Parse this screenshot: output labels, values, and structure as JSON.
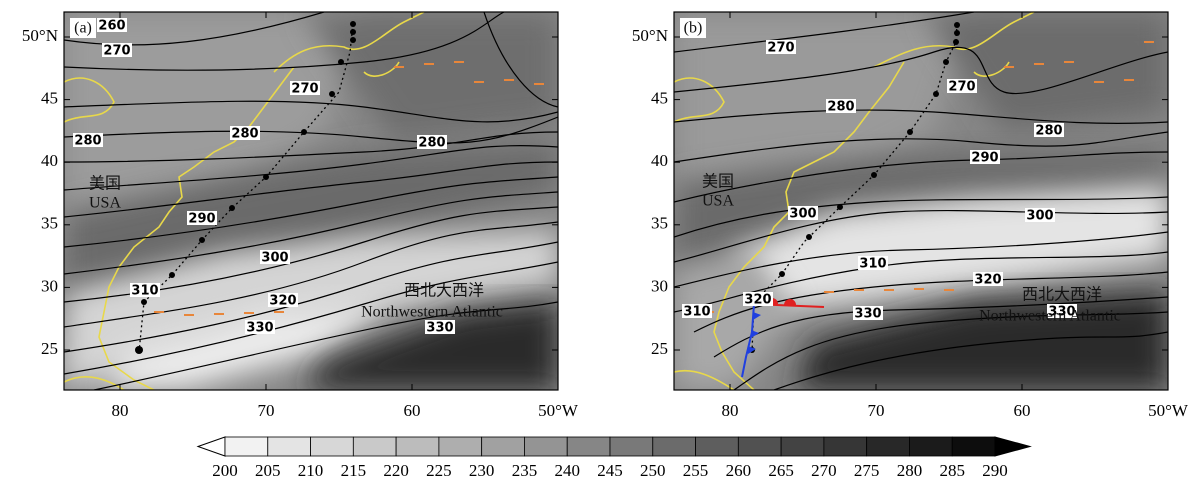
{
  "panels": [
    {
      "label": "(a)",
      "lat_ticks": [
        {
          "value": 50,
          "label": "50°N"
        },
        45,
        40,
        35,
        30,
        25
      ],
      "lon_ticks": [
        80,
        70,
        60,
        {
          "value": 50,
          "label": "50°W"
        }
      ],
      "contour_labels": [
        260,
        270,
        270,
        280,
        280,
        280,
        290,
        300,
        310,
        320,
        330,
        330
      ],
      "land_label_zh": "美国",
      "land_label_en": "USA",
      "ocean_label_zh": "西北大西洋",
      "ocean_label_en": "Northwestern Atlantic"
    },
    {
      "label": "(b)",
      "lat_ticks": [
        {
          "value": 50,
          "label": "50°N"
        },
        45,
        40,
        35,
        30,
        25
      ],
      "lon_ticks": [
        80,
        70,
        60,
        {
          "value": 50,
          "label": "50°W"
        }
      ],
      "contour_labels": [
        270,
        270,
        280,
        280,
        290,
        300,
        300,
        310,
        310,
        320,
        320,
        330,
        330
      ],
      "land_label_zh": "美国",
      "land_label_en": "USA",
      "ocean_label_zh": "西北大西洋",
      "ocean_label_en": "Northwestern Atlantic"
    }
  ],
  "colorbar": {
    "levels": [
      200,
      205,
      210,
      215,
      220,
      225,
      230,
      235,
      240,
      245,
      250,
      255,
      260,
      265,
      270,
      275,
      280,
      285,
      290
    ]
  }
}
